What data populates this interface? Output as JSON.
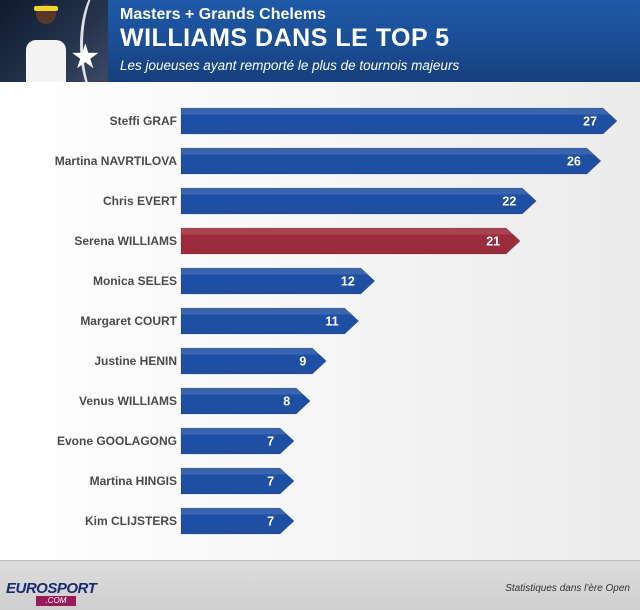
{
  "header": {
    "supertitle": "Masters + Grands Chelems",
    "title": "WILLIAMS DANS LE TOP 5",
    "subtitle": "Les joueuses ayant remporté le plus de tournois majeurs"
  },
  "footer": {
    "logo_euro": "EURO",
    "logo_sport": "SPORT",
    "logo_com": ".COM",
    "note": "Statistiques dans l'ère Open"
  },
  "colors": {
    "bar": "#1f4fa3",
    "highlight": "#9c2b3b",
    "header": "#1a4d94"
  },
  "chart_data": {
    "type": "bar",
    "orientation": "horizontal",
    "categories": [
      "Steffi GRAF",
      "Martina NAVRTILOVA",
      "Chris EVERT",
      "Serena WILLIAMS",
      "Monica SELES",
      "Margaret COURT",
      "Justine HENIN",
      "Venus WILLIAMS",
      "Evone GOOLAGONG",
      "Martina HINGIS",
      "Kim CLIJSTERS"
    ],
    "values": [
      27,
      26,
      22,
      21,
      12,
      11,
      9,
      8,
      7,
      7,
      7
    ],
    "highlight": "Serena WILLIAMS",
    "xlim": [
      0,
      28
    ],
    "grid": false,
    "legend": "none"
  }
}
